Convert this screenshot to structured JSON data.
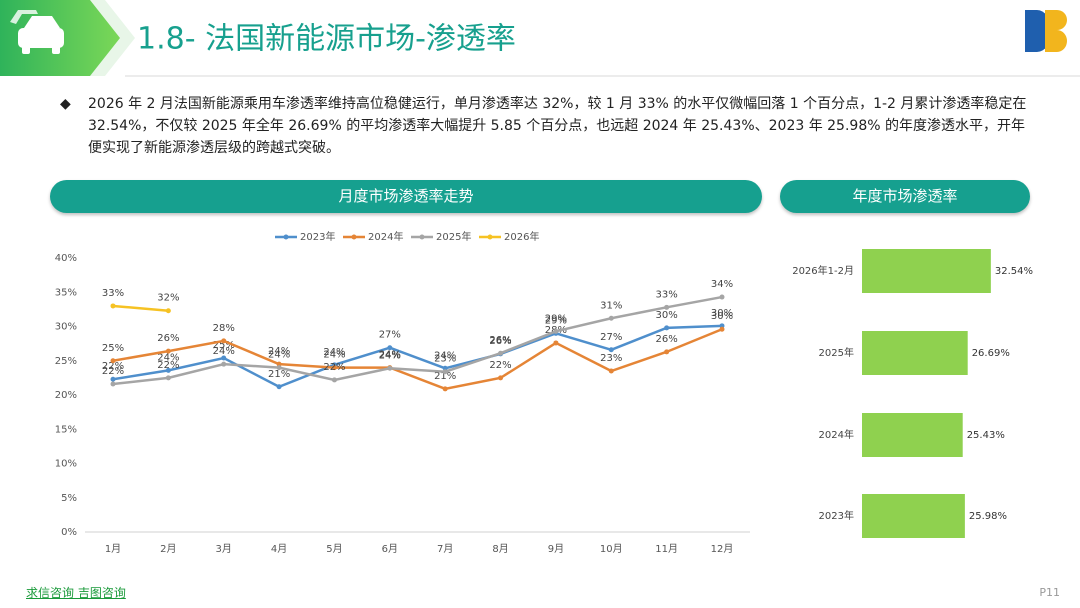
{
  "header": {
    "title": "1.8- 法国新能源市场-渗透率"
  },
  "summary": "2026 年 2 月法国新能源乘用车渗透率维持高位稳健运行，单月渗透率达 32%，较 1 月 33% 的水平仅微幅回落 1 个百分点，1-2 月累计渗透率稳定在 32.54%，不仅较 2025 年全年 26.69% 的平均渗透率大幅提升 5.85 个百分点，也远超 2024 年 25.43%、2023 年 25.98% 的年度渗透水平，开年便实现了新能源渗透层级的跨越式突破。",
  "panels": [
    "月度市场渗透率走势",
    "年度市场渗透率"
  ],
  "footer": {
    "brand": "求信咨询 吉图咨询",
    "page": "P11"
  },
  "chart_data": [
    {
      "type": "line",
      "categories": [
        "1月",
        "2月",
        "3月",
        "4月",
        "5月",
        "6月",
        "7月",
        "8月",
        "9月",
        "10月",
        "11月",
        "12月"
      ],
      "ylim": [
        0,
        40
      ],
      "yticks": [
        {
          "value": 0,
          "label": "0%"
        },
        {
          "value": 5,
          "label": "5%"
        },
        {
          "value": 10,
          "label": "10%"
        },
        {
          "value": 15,
          "label": "15%"
        },
        {
          "value": 20,
          "label": "20%"
        },
        {
          "value": 25,
          "label": "25%"
        },
        {
          "value": 30,
          "label": "30%"
        },
        {
          "value": 35,
          "label": "35%"
        },
        {
          "value": 40,
          "label": "40%"
        }
      ],
      "legend": "top",
      "series": [
        {
          "name": "2023年",
          "color": "#4f8fcc",
          "values": [
            22.3,
            23.6,
            25.4,
            21.2,
            24.4,
            26.9,
            23.9,
            26.0,
            29.0,
            26.6,
            29.8,
            30.1
          ],
          "value_labels": [
            "22%",
            "24%",
            "25%",
            "21%",
            "24%",
            "27%",
            "24%",
            "26%",
            "29%",
            "27%",
            "30%",
            "30%"
          ]
        },
        {
          "name": "2024年",
          "color": "#e58536",
          "values": [
            25.0,
            26.4,
            27.9,
            24.5,
            24.0,
            24.0,
            20.9,
            22.5,
            27.6,
            23.5,
            26.3,
            29.6
          ],
          "value_labels": [
            "25%",
            "26%",
            "28%",
            "24%",
            "24%",
            "24%",
            "21%",
            "22%",
            "28%",
            "23%",
            "26%",
            "30%"
          ]
        },
        {
          "name": "2025年",
          "color": "#a5a5a5",
          "values": [
            21.6,
            22.5,
            24.5,
            24.0,
            22.2,
            23.9,
            23.4,
            26.1,
            29.3,
            31.2,
            32.8,
            34.3
          ],
          "value_labels": [
            "22%",
            "22%",
            "24%",
            "24%",
            "22%",
            "24%",
            "23%",
            "26%",
            "29%",
            "31%",
            "33%",
            "34%"
          ]
        },
        {
          "name": "2026年",
          "color": "#f6c223",
          "values": [
            33.0,
            32.3,
            null,
            null,
            null,
            null,
            null,
            null,
            null,
            null,
            null,
            null
          ],
          "value_labels": [
            "33%",
            "32%",
            null,
            null,
            null,
            null,
            null,
            null,
            null,
            null,
            null,
            null
          ]
        }
      ]
    },
    {
      "type": "hbar",
      "categories": [
        "2026年1-2月",
        "2025年",
        "2024年",
        "2023年"
      ],
      "values": [
        32.54,
        26.69,
        25.43,
        25.98
      ],
      "value_labels": [
        "32.54%",
        "26.69%",
        "25.43%",
        "25.98%"
      ],
      "color": "#8fd14f"
    }
  ]
}
